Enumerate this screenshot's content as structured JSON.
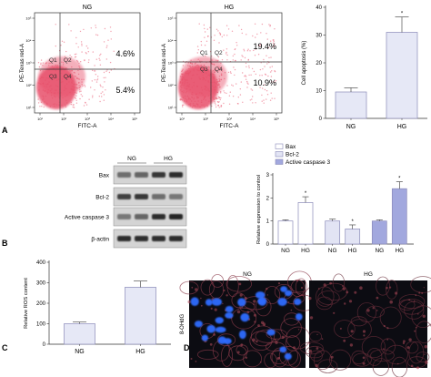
{
  "panel_letters": [
    "A",
    "B",
    "C",
    "D"
  ],
  "flow": {
    "x_label": "FITC-A",
    "y_label": "PE-Texas red-A",
    "x_ticks": [
      "10¹",
      "10²",
      "10³",
      "10⁴",
      "10⁵"
    ],
    "y_ticks": [
      "10¹",
      "10²",
      "10³",
      "10⁴",
      "10⁵"
    ],
    "quadrants": [
      "Q1",
      "Q2",
      "Q3",
      "Q4"
    ],
    "plots": [
      {
        "title": "NG",
        "q2": "4.6%",
        "q4": "5.4%"
      },
      {
        "title": "HG",
        "q2": "19.4%",
        "q4": "10.9%"
      }
    ]
  },
  "blot": {
    "col_labels": [
      "NG",
      "HG"
    ],
    "rows": [
      "Bax",
      "Bcl-2",
      "Active caspase 3",
      "β-actin"
    ]
  },
  "microscopy": {
    "y_label": "8-OHdG",
    "titles": [
      "NG",
      "HG"
    ]
  },
  "colors": {
    "scatter": "#e8506a",
    "bar_outline": "#8a8ab8",
    "bar_bcl2": "#e2e4f4",
    "bar_casp": "#a2a8de"
  },
  "chart_data": [
    {
      "type": "bar",
      "categories": [
        "NG",
        "HG"
      ],
      "values": [
        9.5,
        31
      ],
      "errors": [
        1.5,
        5.5
      ],
      "significance": [
        "",
        "*"
      ],
      "ylabel": "Cell apoptosis (%)",
      "ylim": [
        0,
        40
      ],
      "yticks": [
        0,
        10,
        20,
        30,
        40
      ]
    },
    {
      "type": "bar",
      "categories": [
        "NG",
        "HG"
      ],
      "series": [
        {
          "name": "Bax",
          "values": [
            1.0,
            1.8
          ],
          "errors": [
            0.05,
            0.25
          ],
          "significance": [
            "",
            "*"
          ]
        },
        {
          "name": "Bcl-2",
          "values": [
            1.0,
            0.65
          ],
          "errors": [
            0.08,
            0.18
          ],
          "significance": [
            "",
            "*"
          ]
        },
        {
          "name": "Active caspase 3",
          "values": [
            1.0,
            2.4
          ],
          "errors": [
            0.05,
            0.3
          ],
          "significance": [
            "",
            "*"
          ]
        }
      ],
      "ylabel": "Relative expression to control",
      "ylim": [
        0,
        3
      ],
      "yticks": [
        0,
        1,
        2,
        3
      ],
      "legend": "top-left"
    },
    {
      "type": "bar",
      "categories": [
        "NG",
        "HG"
      ],
      "values": [
        100,
        278
      ],
      "errors": [
        8,
        30
      ],
      "ylabel": "Relative ROS content",
      "ylim": [
        0,
        400
      ],
      "yticks": [
        0,
        100,
        200,
        300,
        400
      ]
    }
  ]
}
